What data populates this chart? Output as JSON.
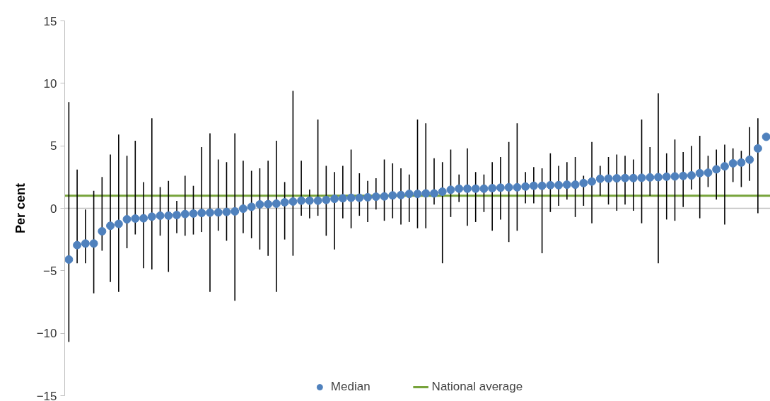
{
  "chart_data": {
    "type": "scatter",
    "ylabel": "Per cent",
    "categories": [
      null,
      null,
      null,
      null,
      null,
      null,
      null,
      null,
      null,
      null,
      null,
      null,
      null,
      null,
      null,
      null,
      null,
      null,
      null,
      null,
      null,
      null,
      null,
      null,
      null,
      null,
      null,
      null,
      null,
      null,
      null,
      null,
      null,
      null,
      null,
      null,
      null,
      null,
      null,
      null,
      null,
      null,
      null,
      null,
      null,
      null,
      null,
      null,
      null,
      null,
      null,
      null,
      null,
      null,
      null,
      null,
      null,
      null,
      null,
      null,
      null,
      null,
      null,
      null,
      null,
      null,
      null,
      null,
      null,
      null,
      null,
      null,
      null,
      null,
      null,
      null,
      null,
      null,
      null,
      null,
      null,
      null,
      null,
      null,
      null
    ],
    "series": [
      {
        "name": "Median",
        "color": "#4f81bd",
        "values": [
          -4.1,
          -2.95,
          -2.82,
          -2.82,
          -1.84,
          -1.4,
          -1.25,
          -0.88,
          -0.82,
          -0.8,
          -0.67,
          -0.59,
          -0.59,
          -0.54,
          -0.46,
          -0.42,
          -0.37,
          -0.35,
          -0.33,
          -0.29,
          -0.25,
          -0.03,
          0.12,
          0.31,
          0.33,
          0.37,
          0.48,
          0.54,
          0.61,
          0.61,
          0.61,
          0.67,
          0.76,
          0.8,
          0.84,
          0.84,
          0.88,
          0.93,
          0.95,
          1.03,
          1.06,
          1.15,
          1.15,
          1.19,
          1.19,
          1.33,
          1.48,
          1.57,
          1.57,
          1.57,
          1.57,
          1.61,
          1.65,
          1.68,
          1.68,
          1.74,
          1.8,
          1.8,
          1.85,
          1.85,
          1.89,
          1.89,
          2.02,
          2.14,
          2.36,
          2.38,
          2.4,
          2.42,
          2.42,
          2.44,
          2.47,
          2.49,
          2.53,
          2.55,
          2.59,
          2.63,
          2.81,
          2.85,
          3.12,
          3.36,
          3.6,
          3.66,
          3.89,
          4.79,
          5.72
        ],
        "errors": [
          [
            -10.7,
            8.5
          ],
          [
            -4.4,
            3.1
          ],
          [
            -4.4,
            -0.1
          ],
          [
            -6.8,
            1.4
          ],
          [
            -3.4,
            2.5
          ],
          [
            -5.9,
            4.3
          ],
          [
            -6.7,
            5.9
          ],
          [
            -3.2,
            4.2
          ],
          [
            -2.1,
            5.4
          ],
          [
            -4.8,
            2.1
          ],
          [
            -4.9,
            7.2
          ],
          [
            -2.2,
            1.7
          ],
          [
            -5.1,
            2.2
          ],
          [
            -2.0,
            0.6
          ],
          [
            -2.2,
            2.6
          ],
          [
            -2.1,
            1.8
          ],
          [
            -1.9,
            4.9
          ],
          [
            -6.7,
            6.0
          ],
          [
            -1.8,
            3.9
          ],
          [
            -2.6,
            3.7
          ],
          [
            -7.4,
            6.0
          ],
          [
            -2.0,
            3.8
          ],
          [
            -2.4,
            3.0
          ],
          [
            -3.3,
            3.2
          ],
          [
            -3.8,
            3.8
          ],
          [
            -6.7,
            5.4
          ],
          [
            -2.5,
            2.1
          ],
          [
            -3.8,
            9.4
          ],
          [
            -0.6,
            3.8
          ],
          [
            -0.8,
            1.5
          ],
          [
            -0.6,
            7.1
          ],
          [
            -2.2,
            3.4
          ],
          [
            -3.3,
            2.9
          ],
          [
            -0.8,
            3.4
          ],
          [
            -1.6,
            4.7
          ],
          [
            -0.6,
            2.8
          ],
          [
            -1.1,
            2.2
          ],
          [
            -0.1,
            2.4
          ],
          [
            -1.0,
            3.9
          ],
          [
            -0.8,
            3.6
          ],
          [
            -1.3,
            3.2
          ],
          [
            -1.1,
            2.7
          ],
          [
            -1.6,
            7.1
          ],
          [
            -1.6,
            6.8
          ],
          [
            0.3,
            4.0
          ],
          [
            -4.4,
            3.7
          ],
          [
            -0.7,
            4.7
          ],
          [
            0.5,
            2.7
          ],
          [
            -1.4,
            4.8
          ],
          [
            -1.1,
            2.9
          ],
          [
            -0.3,
            2.7
          ],
          [
            -1.8,
            3.7
          ],
          [
            -0.9,
            4.1
          ],
          [
            -2.7,
            5.3
          ],
          [
            -1.8,
            6.8
          ],
          [
            0.4,
            2.9
          ],
          [
            0.4,
            3.3
          ],
          [
            -3.6,
            3.2
          ],
          [
            -0.3,
            4.4
          ],
          [
            0.2,
            3.4
          ],
          [
            0.7,
            3.7
          ],
          [
            -0.7,
            4.1
          ],
          [
            0.2,
            2.6
          ],
          [
            -1.2,
            5.3
          ],
          [
            1.0,
            3.4
          ],
          [
            0.3,
            4.1
          ],
          [
            -0.2,
            4.3
          ],
          [
            0.3,
            4.2
          ],
          [
            -0.2,
            3.9
          ],
          [
            -1.2,
            7.1
          ],
          [
            1.0,
            4.9
          ],
          [
            -4.4,
            9.2
          ],
          [
            -0.9,
            4.4
          ],
          [
            -1.0,
            5.5
          ],
          [
            0.1,
            4.5
          ],
          [
            1.5,
            5.0
          ],
          [
            -0.8,
            5.8
          ],
          [
            1.7,
            4.2
          ],
          [
            0.7,
            4.7
          ],
          [
            -1.3,
            5.1
          ],
          [
            2.1,
            4.8
          ],
          [
            1.7,
            4.6
          ],
          [
            2.2,
            6.5
          ],
          [
            -0.4,
            7.2
          ],
          null
        ]
      }
    ],
    "ylim": [
      -15,
      15
    ],
    "yticks": [
      -15,
      -10,
      -5,
      0,
      5,
      10,
      15
    ],
    "ref_lines": [
      {
        "axis": "y",
        "value": 0,
        "color": "#bfbfbf"
      },
      {
        "axis": "y",
        "value": 1,
        "label": "National average",
        "color": "#77a33b"
      }
    ],
    "legend": "bottom",
    "marker": "circle",
    "grid": false,
    "tick_labels": "y"
  }
}
